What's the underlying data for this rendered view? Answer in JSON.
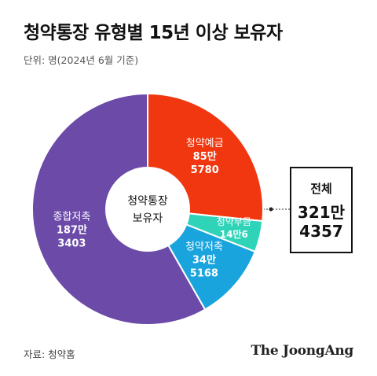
{
  "title": "청약통장 유형별 15년 이상 보유자",
  "unit_note": "단위: 명(2024년 6월 기준)",
  "source": "자료: 청약홈",
  "logo": "The JoongAng",
  "center_label": [
    "청약통장",
    "보유자"
  ],
  "total": {
    "label": "전체",
    "value": [
      "321만",
      "4357"
    ]
  },
  "chart_data": {
    "type": "pie",
    "title": "청약통장 유형별 15년 이상 보유자",
    "unit": "명",
    "total": 3214357,
    "slices": [
      {
        "name": "청약예금",
        "value": 855780,
        "label_lines": [
          "청약예금",
          "85만",
          "5780"
        ],
        "color": "#f0370f"
      },
      {
        "name": "청약부금",
        "value": 140006,
        "label_lines": [
          "청약부금",
          "14만6"
        ],
        "color": "#2fd4b8"
      },
      {
        "name": "청약저축",
        "value": 345168,
        "label_lines": [
          "청약저축",
          "34만",
          "5168"
        ],
        "color": "#1aa4de"
      },
      {
        "name": "종합저축",
        "value": 1873403,
        "label_lines": [
          "종합저축",
          "187만",
          "3403"
        ],
        "color": "#6b4aa8"
      }
    ]
  }
}
